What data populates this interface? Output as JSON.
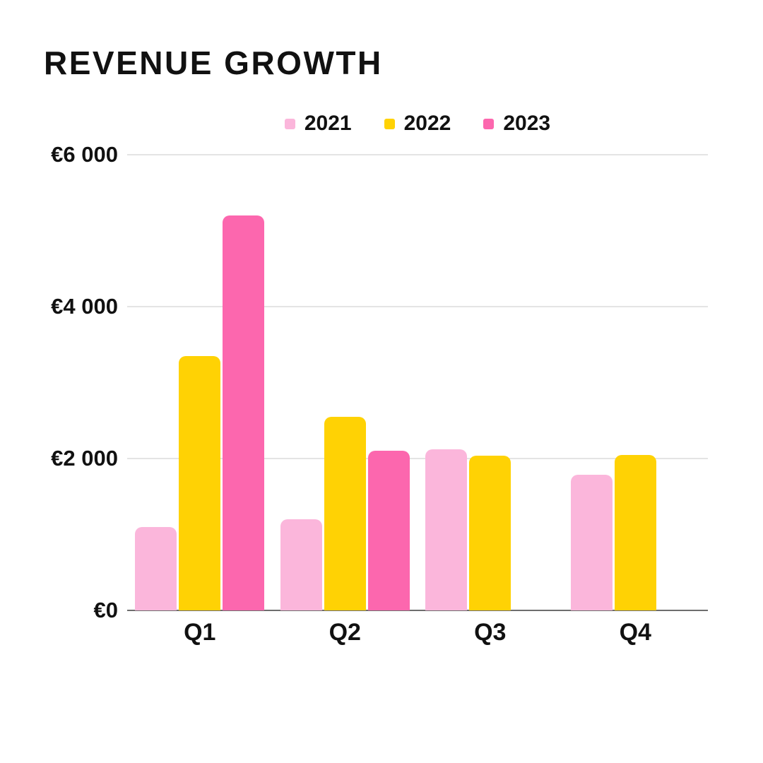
{
  "page": {
    "background": "#ffffff"
  },
  "header": {
    "title": "REVENUE GROWTH"
  },
  "chart_data": {
    "type": "bar",
    "title": "REVENUE GROWTH",
    "categories": [
      "Q1",
      "Q2",
      "Q3",
      "Q4"
    ],
    "series": [
      {
        "name": "2021",
        "color": "#FBB6DB",
        "values": [
          1100,
          1200,
          2120,
          1790
        ]
      },
      {
        "name": "2022",
        "color": "#FFD204",
        "values": [
          3350,
          2550,
          2040,
          2050
        ]
      },
      {
        "name": "2023",
        "color": "#FC67AE",
        "values": [
          5200,
          2100,
          0,
          0
        ]
      }
    ],
    "xlabel": "",
    "ylabel": "",
    "ylim": [
      0,
      6000
    ],
    "yticks": [
      {
        "value": 0,
        "label": "€0"
      },
      {
        "value": 2000,
        "label": "€2 000"
      },
      {
        "value": 4000,
        "label": "€4 000"
      },
      {
        "value": 6000,
        "label": "€6 000"
      }
    ],
    "currency": "EUR",
    "grid": true,
    "legend_position": "top-center"
  },
  "style": {
    "gridline_color": "#C9C9C9",
    "baseline_color": "#6E6E6E",
    "text_color": "#111111"
  }
}
